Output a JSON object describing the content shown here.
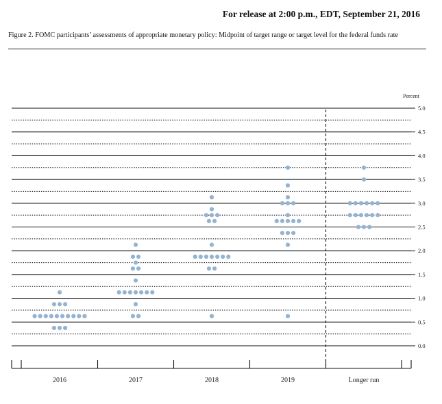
{
  "header": {
    "release": "For release at 2:00 p.m., EDT, September 21, 2016",
    "caption": "Figure 2. FOMC participants’ assessments of appropriate monetary policy: Midpoint of target range or target level for the federal funds rate"
  },
  "chart_data": {
    "type": "scatter",
    "subtype": "dot plot",
    "ylabel": "Percent",
    "ylim": [
      0,
      5
    ],
    "yticks": [
      "5.0",
      "4.5",
      "4.0",
      "3.5",
      "3.0",
      "2.5",
      "2.0",
      "1.5",
      "1.0",
      "0.5",
      "0.0"
    ],
    "categories": [
      "2016",
      "2017",
      "2018",
      "2019",
      "Longer run"
    ],
    "dot_color": "#94b3d1",
    "grid": "solid lines at whole and half percents, dotted lines at quarter percents",
    "divider": "dashed vertical line before Longer run",
    "columns": [
      {
        "category": "2016",
        "counts": [
          {
            "value": 0.375,
            "count": 3
          },
          {
            "value": 0.625,
            "count": 10
          },
          {
            "value": 0.875,
            "count": 3
          },
          {
            "value": 1.125,
            "count": 1
          }
        ]
      },
      {
        "category": "2017",
        "counts": [
          {
            "value": 0.625,
            "count": 2
          },
          {
            "value": 0.875,
            "count": 1
          },
          {
            "value": 1.125,
            "count": 7
          },
          {
            "value": 1.375,
            "count": 1
          },
          {
            "value": 1.625,
            "count": 2
          },
          {
            "value": 1.75,
            "count": 1
          },
          {
            "value": 1.875,
            "count": 2
          },
          {
            "value": 2.125,
            "count": 1
          }
        ]
      },
      {
        "category": "2018",
        "counts": [
          {
            "value": 0.625,
            "count": 1
          },
          {
            "value": 1.625,
            "count": 2
          },
          {
            "value": 1.875,
            "count": 7
          },
          {
            "value": 2.125,
            "count": 1
          },
          {
            "value": 2.625,
            "count": 2
          },
          {
            "value": 2.75,
            "count": 3
          },
          {
            "value": 2.875,
            "count": 1
          },
          {
            "value": 3.125,
            "count": 1
          }
        ]
      },
      {
        "category": "2019",
        "counts": [
          {
            "value": 0.625,
            "count": 1
          },
          {
            "value": 2.125,
            "count": 1
          },
          {
            "value": 2.375,
            "count": 3
          },
          {
            "value": 2.625,
            "count": 5
          },
          {
            "value": 2.75,
            "count": 1
          },
          {
            "value": 3.0,
            "count": 3
          },
          {
            "value": 3.125,
            "count": 1
          },
          {
            "value": 3.375,
            "count": 1
          },
          {
            "value": 3.75,
            "count": 1
          }
        ]
      },
      {
        "category": "Longer run",
        "counts": [
          {
            "value": 2.5,
            "count": 3
          },
          {
            "value": 2.75,
            "count": 6
          },
          {
            "value": 3.0,
            "count": 6
          },
          {
            "value": 3.5,
            "count": 1
          },
          {
            "value": 3.75,
            "count": 1
          }
        ]
      }
    ]
  }
}
